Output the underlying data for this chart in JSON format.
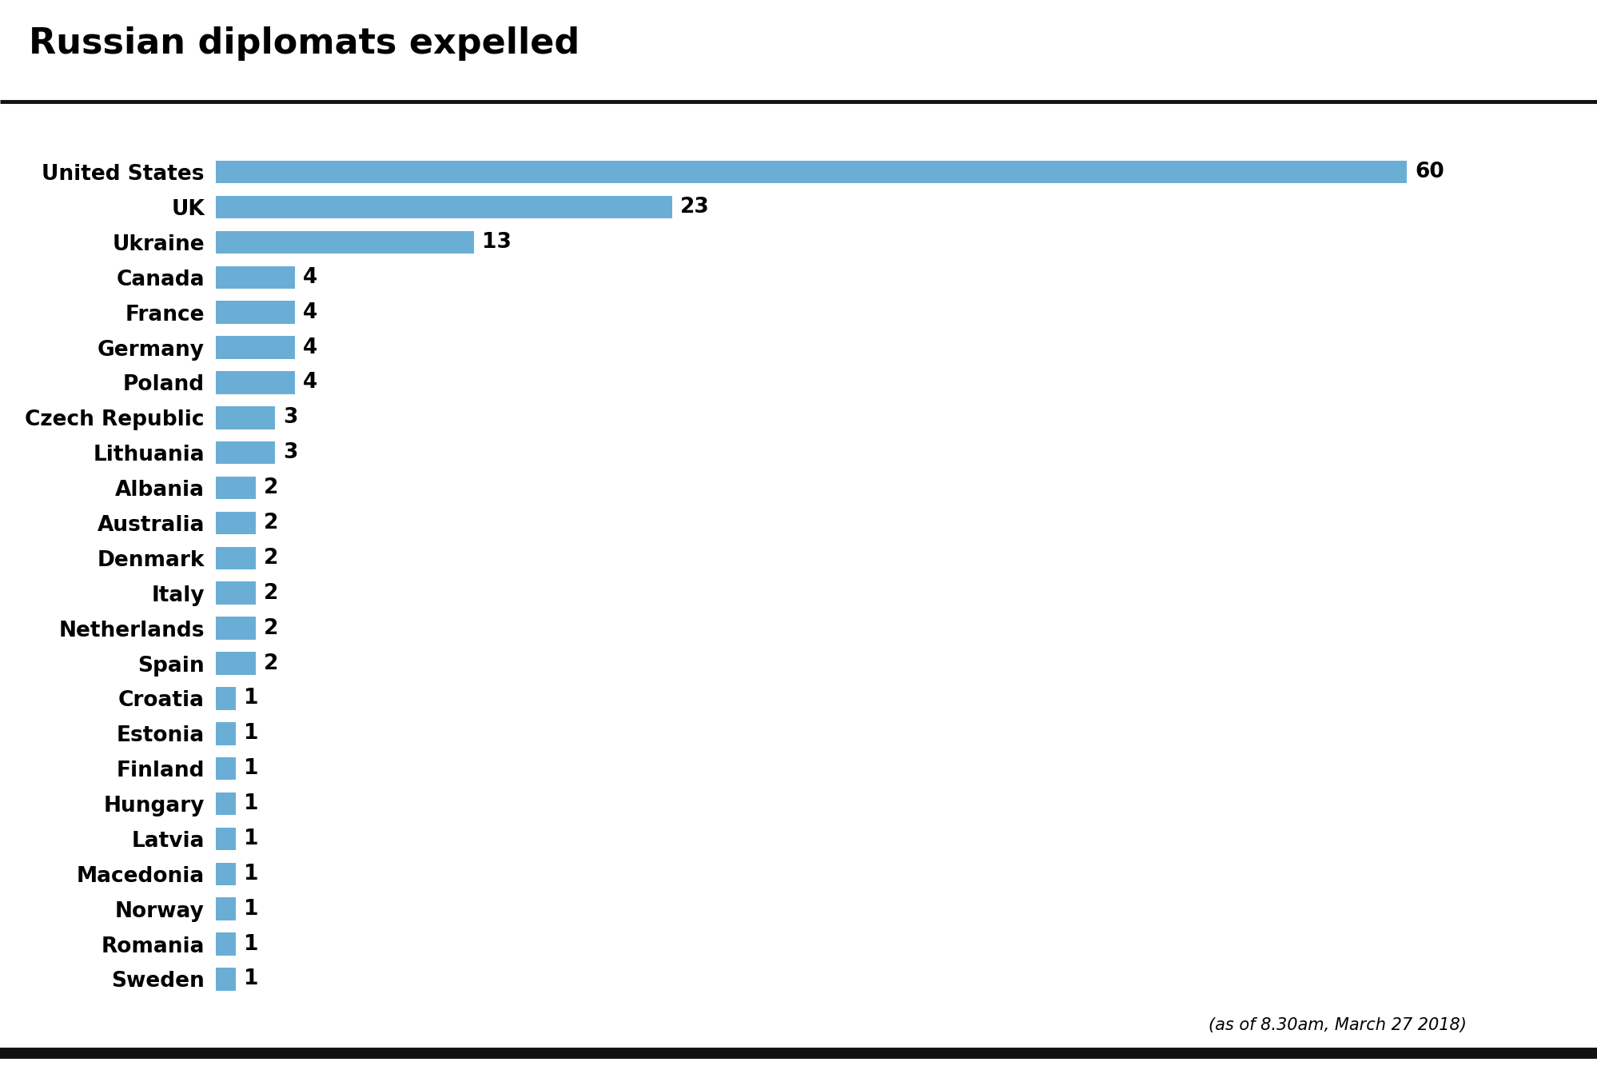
{
  "title": "Russian diplomats expelled",
  "subtitle": "(as of 8.30am, March 27 2018)",
  "countries": [
    "United States",
    "UK",
    "Ukraine",
    "Canada",
    "France",
    "Germany",
    "Poland",
    "Czech Republic",
    "Lithuania",
    "Albania",
    "Australia",
    "Denmark",
    "Italy",
    "Netherlands",
    "Spain",
    "Croatia",
    "Estonia",
    "Finland",
    "Hungary",
    "Latvia",
    "Macedonia",
    "Norway",
    "Romania",
    "Sweden"
  ],
  "values": [
    60,
    23,
    13,
    4,
    4,
    4,
    4,
    3,
    3,
    2,
    2,
    2,
    2,
    2,
    2,
    1,
    1,
    1,
    1,
    1,
    1,
    1,
    1,
    1
  ],
  "bar_color": "#6aaed6",
  "bg_color": "#ffffff",
  "title_fontsize": 32,
  "label_fontsize": 19,
  "value_fontsize": 19,
  "pa_color": "#cc1111",
  "pa_text_color": "#ffffff",
  "bottom_bar_color": "#111111",
  "top_line_color": "#111111",
  "subtitle_fontsize": 15
}
